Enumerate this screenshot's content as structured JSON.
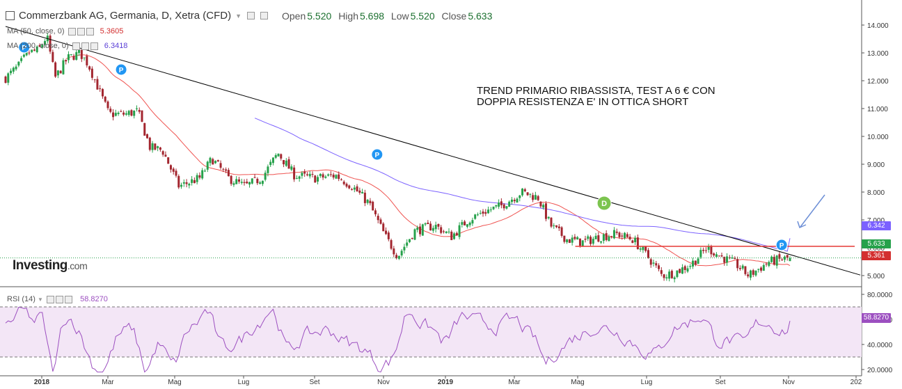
{
  "header": {
    "title": "Commerzbank AG, Germania, D, Xetra (CFD)",
    "open_label": "Open",
    "open": "5.520",
    "high_label": "High",
    "high": "5.698",
    "low_label": "Low",
    "low": "5.520",
    "close_label": "Close",
    "close": "5.633"
  },
  "indicators": {
    "ma50_label": "MA (50, close, 0)",
    "ma50_value": "5.3605",
    "ma200_label": "MA (200, close, 0)",
    "ma200_value": "6.3418",
    "rsi_label": "RSI (14)",
    "rsi_value": "58.8270"
  },
  "annotation": {
    "line1": "TREND PRIMARIO RIBASSISTA, TEST A 6 € CON",
    "line2": "DOPPIA RESISTENZA E' IN OTTICA SHORT"
  },
  "logo": {
    "main": "Investing",
    "suffix": ".com"
  },
  "colors": {
    "up": "#26a14b",
    "down": "#a3262f",
    "ma50": "#ef5350",
    "ma200": "#7b61ff",
    "rsi": "#9c4fc0",
    "rsi_band": "#f3e6f6",
    "trendline": "#000000",
    "support": "#e53935",
    "arrow": "#6d8fd6",
    "event_dividend": "#7cc44f",
    "event_p": "#2196f3"
  },
  "chart_data": [
    {
      "type": "candlestick",
      "title": "Commerzbank AG, Germania, D, Xetra (CFD)",
      "x_tick_labels": [
        "2018",
        "Mar",
        "Mag",
        "Lug",
        "Set",
        "Nov",
        "2019",
        "Mar",
        "Mag",
        "Lug",
        "Set",
        "Nov",
        "202"
      ],
      "y_tick_labels": [
        "14.000",
        "13.000",
        "12.000",
        "11.000",
        "10.000",
        "9.000",
        "8.000",
        "7.000",
        "6.000",
        "5.000"
      ],
      "ylim": [
        4.6,
        14.9
      ],
      "price_path": [
        {
          "x": 0.0,
          "price": 12.1
        },
        {
          "x": 0.3,
          "price": 12.5
        },
        {
          "x": 0.55,
          "price": 13.0
        },
        {
          "x": 0.8,
          "price": 13.1
        },
        {
          "x": 1.0,
          "price": 13.6
        },
        {
          "x": 1.2,
          "price": 12.1
        },
        {
          "x": 1.5,
          "price": 12.8
        },
        {
          "x": 1.8,
          "price": 13.0
        },
        {
          "x": 2.0,
          "price": 12.6
        },
        {
          "x": 2.2,
          "price": 11.9
        },
        {
          "x": 2.5,
          "price": 10.8
        },
        {
          "x": 2.9,
          "price": 10.8
        },
        {
          "x": 3.2,
          "price": 10.9
        },
        {
          "x": 3.5,
          "price": 9.6
        },
        {
          "x": 3.8,
          "price": 9.5
        },
        {
          "x": 4.2,
          "price": 8.2
        },
        {
          "x": 4.7,
          "price": 8.5
        },
        {
          "x": 5.0,
          "price": 9.2
        },
        {
          "x": 5.4,
          "price": 8.5
        },
        {
          "x": 5.8,
          "price": 8.2
        },
        {
          "x": 6.2,
          "price": 8.5
        },
        {
          "x": 6.6,
          "price": 9.4
        },
        {
          "x": 7.0,
          "price": 8.6
        },
        {
          "x": 7.5,
          "price": 8.5
        },
        {
          "x": 8.0,
          "price": 8.6
        },
        {
          "x": 8.4,
          "price": 8.2
        },
        {
          "x": 8.8,
          "price": 7.6
        },
        {
          "x": 9.2,
          "price": 6.4
        },
        {
          "x": 9.5,
          "price": 5.7
        },
        {
          "x": 9.9,
          "price": 6.6
        },
        {
          "x": 10.4,
          "price": 6.8
        },
        {
          "x": 10.8,
          "price": 6.4
        },
        {
          "x": 11.2,
          "price": 7.0
        },
        {
          "x": 11.6,
          "price": 7.3
        },
        {
          "x": 12.0,
          "price": 7.5
        },
        {
          "x": 12.5,
          "price": 8.0
        },
        {
          "x": 12.9,
          "price": 7.8
        },
        {
          "x": 13.2,
          "price": 6.8
        },
        {
          "x": 13.6,
          "price": 6.3
        },
        {
          "x": 14.0,
          "price": 6.2
        },
        {
          "x": 14.4,
          "price": 6.4
        },
        {
          "x": 14.8,
          "price": 6.5
        },
        {
          "x": 15.2,
          "price": 6.3
        },
        {
          "x": 15.6,
          "price": 5.6
        },
        {
          "x": 15.9,
          "price": 5.0
        },
        {
          "x": 16.2,
          "price": 5.1
        },
        {
          "x": 16.6,
          "price": 5.4
        },
        {
          "x": 17.0,
          "price": 6.0
        },
        {
          "x": 17.3,
          "price": 5.7
        },
        {
          "x": 17.7,
          "price": 5.4
        },
        {
          "x": 18.0,
          "price": 5.0
        },
        {
          "x": 18.5,
          "price": 5.5
        },
        {
          "x": 19.0,
          "price": 5.63
        }
      ],
      "series": [
        {
          "name": "MA (50, close, 0)",
          "last_value": 5.3605
        },
        {
          "name": "MA (200, close, 0)",
          "last_value": 6.3418
        }
      ],
      "price_labels": [
        {
          "value": "6.342",
          "y": 6.342,
          "color": "#7b61ff"
        },
        {
          "value": "5.633",
          "y": 5.633,
          "color": "#26a14b"
        },
        {
          "value": "5.361",
          "y": 5.361,
          "color": "#d32f2f"
        }
      ],
      "support_level": 6.05,
      "markers": [
        {
          "label": "P",
          "x": 0.45,
          "y": 13.2
        },
        {
          "label": "P",
          "x": 2.8,
          "y": 12.4
        },
        {
          "label": "P",
          "x": 9.0,
          "y": 9.35
        },
        {
          "label": "D",
          "x": 14.5,
          "y": 7.6
        },
        {
          "label": "P",
          "x": 18.8,
          "y": 6.1
        }
      ],
      "legend": "top-left",
      "grid": false
    },
    {
      "type": "line",
      "title": "RSI (14)",
      "y_tick_labels": [
        "80.0000",
        "60.0000",
        "40.0000",
        "20.0000"
      ],
      "ylim": [
        15,
        85
      ],
      "band": [
        30,
        70
      ],
      "series": [
        {
          "name": "RSI (14)",
          "last_value": 58.827
        }
      ]
    }
  ]
}
